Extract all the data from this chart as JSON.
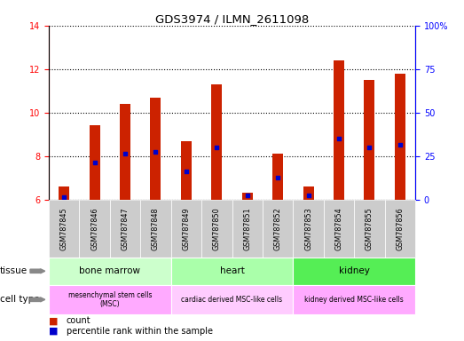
{
  "title": "GDS3974 / ILMN_2611098",
  "samples": [
    "GSM787845",
    "GSM787846",
    "GSM787847",
    "GSM787848",
    "GSM787849",
    "GSM787850",
    "GSM787851",
    "GSM787852",
    "GSM787853",
    "GSM787854",
    "GSM787855",
    "GSM787856"
  ],
  "count_values": [
    6.6,
    9.4,
    10.4,
    10.7,
    8.7,
    11.3,
    6.3,
    8.1,
    6.6,
    12.4,
    11.5,
    11.8
  ],
  "percentile_values": [
    6.1,
    7.7,
    8.1,
    8.2,
    7.3,
    8.4,
    6.2,
    7.0,
    6.2,
    8.8,
    8.4,
    8.5
  ],
  "ylim_left": [
    6,
    14
  ],
  "ylim_right": [
    0,
    100
  ],
  "yticks_left": [
    6,
    8,
    10,
    12,
    14
  ],
  "yticks_right": [
    0,
    25,
    50,
    75,
    100
  ],
  "bar_color": "#cc2200",
  "dot_color": "#0000cc",
  "tissue_groups": [
    {
      "label": "bone marrow",
      "start": 0,
      "end": 4,
      "color": "#ccffcc"
    },
    {
      "label": "heart",
      "start": 4,
      "end": 8,
      "color": "#aaffaa"
    },
    {
      "label": "kidney",
      "start": 8,
      "end": 12,
      "color": "#55ee55"
    }
  ],
  "cell_type_groups": [
    {
      "label": "mesenchymal stem cells\n(MSC)",
      "start": 0,
      "end": 4,
      "color": "#ffaaff"
    },
    {
      "label": "cardiac derived MSC-like cells",
      "start": 4,
      "end": 8,
      "color": "#ffccff"
    },
    {
      "label": "kidney derived MSC-like cells",
      "start": 8,
      "end": 12,
      "color": "#ffaaff"
    }
  ],
  "tissue_label": "tissue",
  "cell_type_label": "cell type",
  "legend_count": "count",
  "legend_pct": "percentile rank within the sample",
  "bar_width": 0.35,
  "sample_bg_color": "#cccccc"
}
